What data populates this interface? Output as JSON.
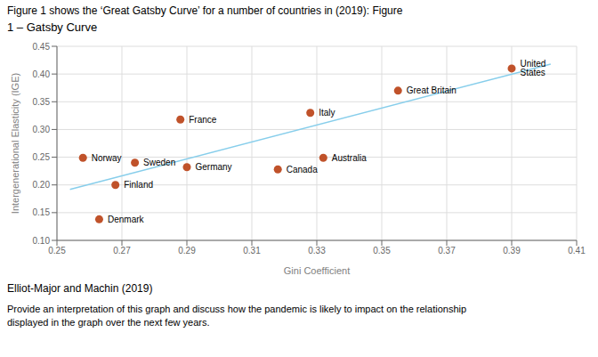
{
  "chart_data": {
    "type": "scatter",
    "title": "Figure 1 shows the ‘Great Gatsby Curve’ for a number of countries in (2019): Figure",
    "subtitle": "1 – Gatsby Curve",
    "x_label": "Gini Coefficient",
    "y_label": "Intergenerational Elasticity (IGE)",
    "source": "Elliot-Major and Machin (2019)",
    "footnote": "Provide an interpretation of this graph and discuss how the pandemic is likely to impact on the relationship\ndisplayed in the graph over the next few years.",
    "point_labels": [
      "United States",
      "Great Britain",
      "Italy",
      "France",
      "Norway",
      "Sweden",
      "Germany",
      "Canada",
      "Australia",
      "Finland",
      "Denmark"
    ],
    "x": [
      0.39,
      0.355,
      0.328,
      0.288,
      0.258,
      0.274,
      0.29,
      0.318,
      0.332,
      0.268,
      0.263
    ],
    "values": [
      0.41,
      0.37,
      0.33,
      0.318,
      0.249,
      0.24,
      0.232,
      0.228,
      0.249,
      0.2,
      0.138
    ],
    "color": "#c0522a",
    "trend_line": {
      "x": [
        0.254,
        0.402
      ],
      "y": [
        0.192,
        0.418
      ],
      "color": "#87CEEB"
    },
    "xlim": [
      0.25,
      0.41
    ],
    "ylim": [
      0.1,
      0.45
    ],
    "xticks": [
      0.25,
      0.27,
      0.29,
      0.31,
      0.33,
      0.35,
      0.37,
      0.39,
      0.41
    ],
    "yticks": [
      {
        "value": 0.1,
        "label": "0.10"
      },
      0.15,
      {
        "value": 0.2,
        "label": "0.20"
      },
      0.25,
      {
        "value": 0.3,
        "label": "0.30"
      },
      0.35,
      {
        "value": 0.4,
        "label": "0.40"
      },
      0.45
    ],
    "grid": true
  }
}
